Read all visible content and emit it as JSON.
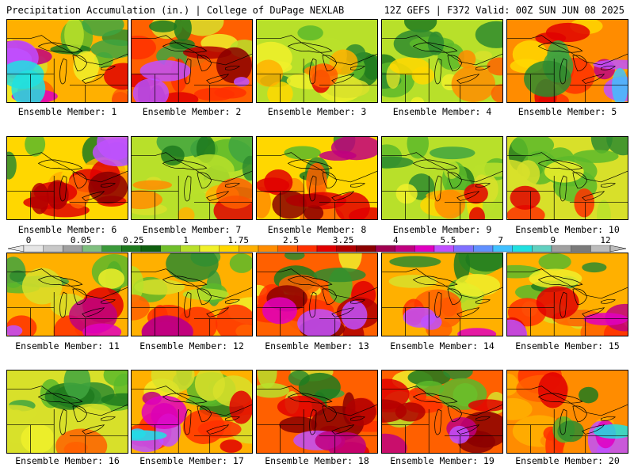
{
  "header": {
    "left_title": "Precipitation Accumulation (in.) | College of DuPage NEXLAB",
    "right_title": "12Z GEFS | F372 Valid: 00Z SUN JUN 08 2025"
  },
  "colorbar": {
    "labels": [
      "0",
      "0.05",
      "0.25",
      "1",
      "1.75",
      "2.5",
      "3.25",
      "4",
      "5.5",
      "7",
      "9",
      "12"
    ],
    "colors": [
      "#e6e6e6",
      "#c8c8c8",
      "#a0a0a0",
      "#7fbf7f",
      "#3a9a3a",
      "#1e7a1e",
      "#0f5f0f",
      "#6fbf2a",
      "#b8e02a",
      "#f0f02a",
      "#ffd700",
      "#ffb000",
      "#ff8c00",
      "#ff6000",
      "#ff3000",
      "#e00000",
      "#b00000",
      "#8b0000",
      "#a00050",
      "#c0007f",
      "#e000c0",
      "#c050ff",
      "#8070ff",
      "#6090ff",
      "#40c0ff",
      "#20e0e0",
      "#60d0c0",
      "#a0a0a0",
      "#7a7a7a",
      "#bcbcbc"
    ]
  },
  "panels": [
    {
      "caption": "Ensemble Member: 1",
      "scheme": "purplewest"
    },
    {
      "caption": "Ensemble Member: 2",
      "scheme": "redheavy"
    },
    {
      "caption": "Ensemble Member: 3",
      "scheme": "greenmix"
    },
    {
      "caption": "Ensemble Member: 4",
      "scheme": "greenmix"
    },
    {
      "caption": "Ensemble Member: 5",
      "scheme": "redeast"
    },
    {
      "caption": "Ensemble Member: 6",
      "scheme": "redband"
    },
    {
      "caption": "Ensemble Member: 7",
      "scheme": "greenmix"
    },
    {
      "caption": "Ensemble Member: 8",
      "scheme": "redband"
    },
    {
      "caption": "Ensemble Member: 9",
      "scheme": "greenmix"
    },
    {
      "caption": "Ensemble Member: 10",
      "scheme": "greennorth"
    },
    {
      "caption": "Ensemble Member: 11",
      "scheme": "redsouth"
    },
    {
      "caption": "Ensemble Member: 12",
      "scheme": "redsouth"
    },
    {
      "caption": "Ensemble Member: 13",
      "scheme": "redheavy"
    },
    {
      "caption": "Ensemble Member: 14",
      "scheme": "redsouth"
    },
    {
      "caption": "Ensemble Member: 15",
      "scheme": "redsouth"
    },
    {
      "caption": "Ensemble Member: 16",
      "scheme": "greennorth"
    },
    {
      "caption": "Ensemble Member: 17",
      "scheme": "purplewest"
    },
    {
      "caption": "Ensemble Member: 18",
      "scheme": "redheavy"
    },
    {
      "caption": "Ensemble Member: 19",
      "scheme": "redheavy"
    },
    {
      "caption": "Ensemble Member: 20",
      "scheme": "redeast"
    }
  ]
}
